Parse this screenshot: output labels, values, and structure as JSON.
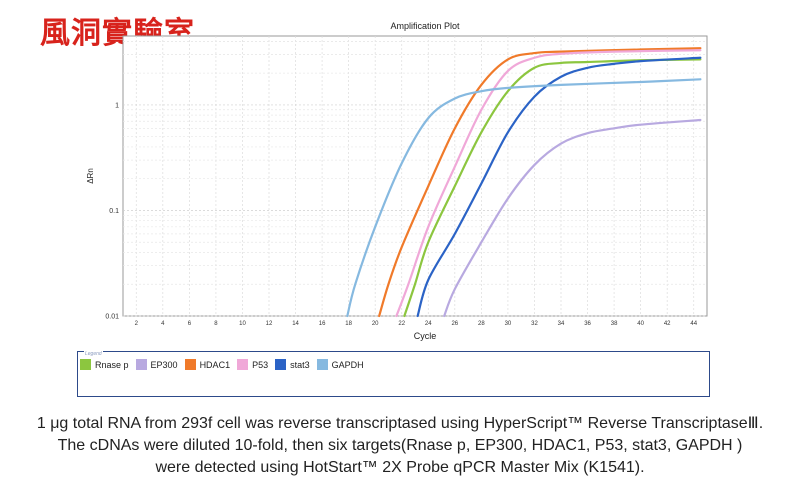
{
  "brand_text": "風洞實驗室",
  "chart_data": {
    "type": "line",
    "title": "Amplification Plot",
    "xlabel": "Cycle",
    "ylabel": "ΔRn",
    "x_ticks": [
      2,
      4,
      6,
      8,
      10,
      12,
      14,
      16,
      18,
      20,
      22,
      24,
      26,
      28,
      30,
      32,
      34,
      36,
      38,
      40,
      42,
      44
    ],
    "y_ticks": [
      {
        "value": 0.01,
        "label": "0.01"
      },
      {
        "value": 0.1,
        "label": "0.1"
      },
      {
        "value": 1,
        "label": "1"
      }
    ],
    "xlim": [
      1,
      45
    ],
    "ylim": [
      0.01,
      4.5
    ],
    "y_scale": "log",
    "grid": true,
    "legend_position": "bottom",
    "series": [
      {
        "name": "Rnase p",
        "color": "#8cc63f",
        "points": [
          [
            22.2,
            0.01
          ],
          [
            23,
            0.02
          ],
          [
            24,
            0.05
          ],
          [
            26,
            0.17
          ],
          [
            28,
            0.55
          ],
          [
            30,
            1.35
          ],
          [
            32,
            2.25
          ],
          [
            34,
            2.5
          ],
          [
            36,
            2.55
          ],
          [
            40,
            2.65
          ],
          [
            44.5,
            2.7
          ]
        ]
      },
      {
        "name": "EP300",
        "color": "#b8a9e0",
        "points": [
          [
            25.2,
            0.01
          ],
          [
            26,
            0.018
          ],
          [
            28,
            0.05
          ],
          [
            30,
            0.13
          ],
          [
            32,
            0.27
          ],
          [
            34,
            0.43
          ],
          [
            36,
            0.54
          ],
          [
            38,
            0.6
          ],
          [
            40,
            0.65
          ],
          [
            44.5,
            0.72
          ]
        ]
      },
      {
        "name": "HDAC1",
        "color": "#f07a2a",
        "points": [
          [
            20.3,
            0.01
          ],
          [
            21,
            0.02
          ],
          [
            22,
            0.045
          ],
          [
            24,
            0.17
          ],
          [
            26,
            0.6
          ],
          [
            28,
            1.55
          ],
          [
            30,
            2.7
          ],
          [
            32,
            3.1
          ],
          [
            34,
            3.2
          ],
          [
            40,
            3.35
          ],
          [
            44.5,
            3.45
          ]
        ]
      },
      {
        "name": "P53",
        "color": "#f0a8d8",
        "points": [
          [
            21.6,
            0.01
          ],
          [
            22.5,
            0.02
          ],
          [
            24,
            0.07
          ],
          [
            26,
            0.26
          ],
          [
            28,
            0.9
          ],
          [
            30,
            2.1
          ],
          [
            32,
            2.8
          ],
          [
            34,
            3.05
          ],
          [
            38,
            3.2
          ],
          [
            44.5,
            3.3
          ]
        ]
      },
      {
        "name": "stat3",
        "color": "#2b63c6",
        "points": [
          [
            23.2,
            0.01
          ],
          [
            24,
            0.022
          ],
          [
            26,
            0.06
          ],
          [
            28,
            0.18
          ],
          [
            30,
            0.55
          ],
          [
            32,
            1.2
          ],
          [
            34,
            1.85
          ],
          [
            36,
            2.25
          ],
          [
            38,
            2.45
          ],
          [
            40,
            2.6
          ],
          [
            44.5,
            2.8
          ]
        ]
      },
      {
        "name": "GAPDH",
        "color": "#86b9e0",
        "points": [
          [
            17.9,
            0.01
          ],
          [
            18.5,
            0.02
          ],
          [
            20,
            0.07
          ],
          [
            22,
            0.28
          ],
          [
            24,
            0.75
          ],
          [
            26,
            1.15
          ],
          [
            28,
            1.35
          ],
          [
            30,
            1.45
          ],
          [
            34,
            1.55
          ],
          [
            40,
            1.65
          ],
          [
            44.5,
            1.75
          ]
        ]
      }
    ]
  },
  "legend": {
    "title": "Legend",
    "items": [
      {
        "label": "Rnase p",
        "color": "#8cc63f"
      },
      {
        "label": "EP300",
        "color": "#b8a9e0"
      },
      {
        "label": "HDAC1",
        "color": "#f07a2a"
      },
      {
        "label": "P53",
        "color": "#f0a8d8"
      },
      {
        "label": "stat3",
        "color": "#2b63c6"
      },
      {
        "label": "GAPDH",
        "color": "#86b9e0"
      }
    ]
  },
  "caption": {
    "line1": "1 μg total RNA from 293f cell was reverse transcriptased using HyperScript™ Reverse TranscriptaseⅢ.",
    "line2": "The cDNAs were diluted 10-fold, then six targets(Rnase p, EP300, HDAC1, P53, stat3, GAPDH )",
    "line3": "were detected using HotStart™ 2X Probe qPCR Master Mix (K1541)."
  }
}
